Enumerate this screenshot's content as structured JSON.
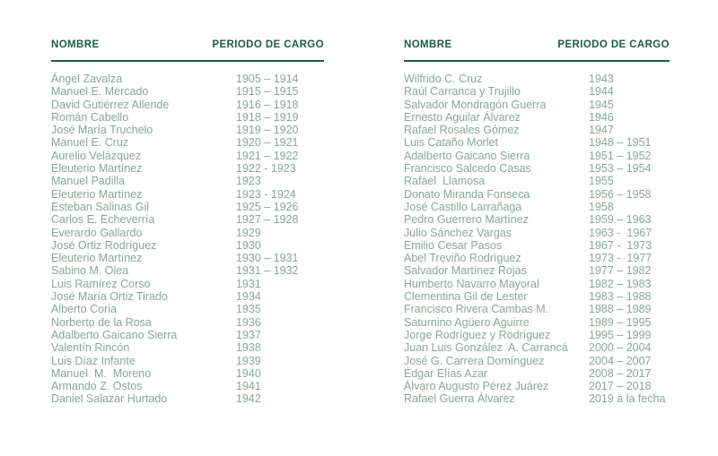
{
  "document": {
    "background": "#ffffff",
    "colors": {
      "header_text": "#1d5b49",
      "rule": "#1f5e4b",
      "body_text": "#87a894"
    },
    "tables": [
      {
        "side": "left",
        "header": {
          "name_label": "NOMBRE",
          "period_label": "PERIODO DE CARGO"
        },
        "rows": [
          {
            "name": "Ángel Zavalza",
            "period": "1905 – 1914"
          },
          {
            "name": "Manuel E. Mercado",
            "period": "1915 – 1915"
          },
          {
            "name": "David Gutiérrez Allende",
            "period": "1916 – 1918"
          },
          {
            "name": "Román Cabello",
            "period": "1918 – 1919"
          },
          {
            "name": "José María Truchelo",
            "period": "1919 – 1920"
          },
          {
            "name": "Manuel E. Cruz",
            "period": "1920 – 1921"
          },
          {
            "name": "Aurelio Velázquez",
            "period": "1921 – 1922"
          },
          {
            "name": "Eleuterio Martínez",
            "period": "1922 - 1923"
          },
          {
            "name": "Manuel Padilla",
            "period": "1923"
          },
          {
            "name": "Eleuterio Martínez",
            "period": "1923 - 1924"
          },
          {
            "name": "Esteban Salinas Gil",
            "period": "1925 – 1926"
          },
          {
            "name": "Carlos E. Echeverría",
            "period": "1927 – 1928"
          },
          {
            "name": "Everardo Gallardo",
            "period": "1929"
          },
          {
            "name": "José Ortiz Rodríguez",
            "period": "1930"
          },
          {
            "name": "Eleuterio Martínez",
            "period": "1930 – 1931"
          },
          {
            "name": "Sabino M. Olea",
            "period": "1931 – 1932"
          },
          {
            "name": "Luis Ramírez Corso",
            "period": "1931"
          },
          {
            "name": "José María Ortiz Tirado",
            "period": "1934"
          },
          {
            "name": "Alberto Coria",
            "period": "1935"
          },
          {
            "name": "Norberto de la Rosa",
            "period": "1936"
          },
          {
            "name": "Adalberto Gaicano Sierra",
            "period": "1937"
          },
          {
            "name": "Valentín Rincón",
            "period": "1938"
          },
          {
            "name": "Luis Díaz Infante",
            "period": "1939"
          },
          {
            "name": "Manuel  M.  Moreno",
            "period": "1940"
          },
          {
            "name": "Armando Z. Ostos",
            "period": "1941"
          },
          {
            "name": "Daniel Salazar Hurtado",
            "period": "1942"
          }
        ]
      },
      {
        "side": "right",
        "header": {
          "name_label": "NOMBRE",
          "period_label": "PERIODO DE CARGO"
        },
        "rows": [
          {
            "name": "Wilfrido C. Cruz",
            "period": "1943"
          },
          {
            "name": "Raúl Carranca y Trujillo",
            "period": "1944"
          },
          {
            "name": "Salvador Mondragón Guerra",
            "period": "1945"
          },
          {
            "name": "Ernesto Aguilar Álvarez",
            "period": "1946"
          },
          {
            "name": "Rafael Rosales Gómez",
            "period": "1947"
          },
          {
            "name": "Luis Cataño Morlet",
            "period": "1948 – 1951"
          },
          {
            "name": "Adalberto Gaicano Sierra",
            "period": "1951 – 1952"
          },
          {
            "name": "Francisco Salcedo Casas",
            "period": "1953 – 1954"
          },
          {
            "name": "Rafael  Llamosa",
            "period": "1955"
          },
          {
            "name": "Donato Miranda Fonseca",
            "period": "1956 – 1958"
          },
          {
            "name": "José Castillo Larrañaga",
            "period": "1958"
          },
          {
            "name": "Pedro Guerrero Martínez",
            "period": "1959 – 1963"
          },
          {
            "name": "Julio Sánchez Vargas",
            "period": "1963 -  1967"
          },
          {
            "name": "Emilio Cesar Pasos",
            "period": "1967 -  1973"
          },
          {
            "name": "Abel Treviño Rodríguez",
            "period": "1973 -  1977"
          },
          {
            "name": "Salvador Martínez Rojas",
            "period": "1977 – 1982"
          },
          {
            "name": "Humberto Navarro Mayoral",
            "period": "1982 – 1983"
          },
          {
            "name": "Clementina Gil de Lester",
            "period": "1983 – 1988"
          },
          {
            "name": "Francisco Rivera Cambas M.",
            "period": "1988 – 1989"
          },
          {
            "name": "Saturnino Agüero Aguirre",
            "period": "1989 – 1995"
          },
          {
            "name": "Jorge Rodríguez y Rodríguez",
            "period": "1995 – 1999"
          },
          {
            "name": "Juan Luis González  A. Carrancá",
            "period": "2000 – 2004"
          },
          {
            "name": "José G. Carrera Domínguez",
            "period": "2004 – 2007"
          },
          {
            "name": "Édgar Elías Azar",
            "period": "2008 – 2017"
          },
          {
            "name": "Álvaro Augusto Pérez Juárez",
            "period": "2017 – 2018"
          },
          {
            "name": "Rafael Guerra Álvarez",
            "period": "2019 a la fecha"
          }
        ]
      }
    ]
  }
}
